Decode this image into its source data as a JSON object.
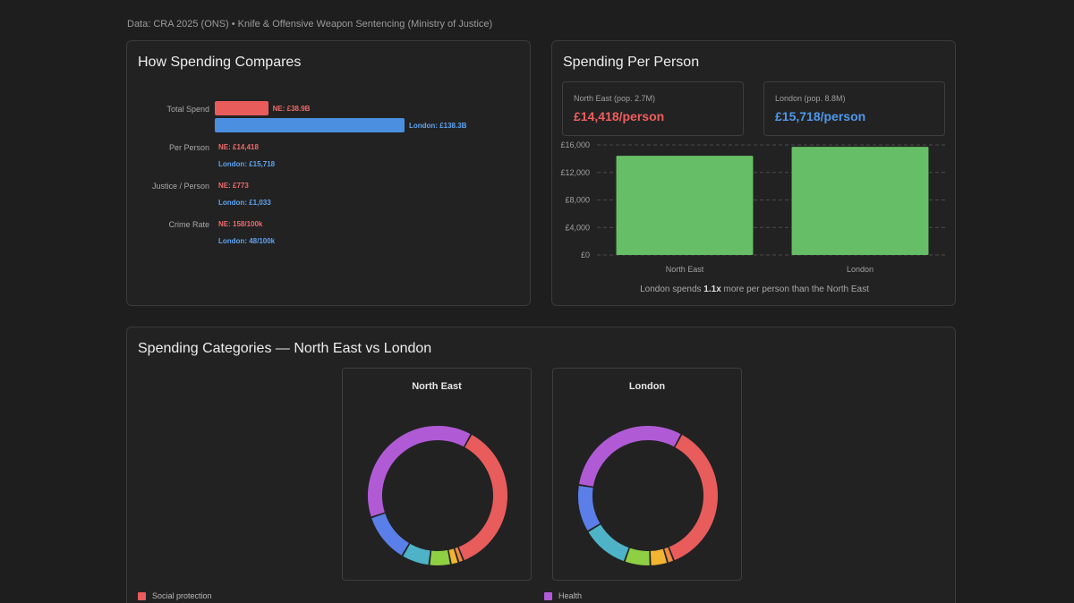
{
  "source_text": "Data: CRA 2025 (ONS) • Knife & Offensive Weapon Sentencing (Ministry of Justice)",
  "compare": {
    "title": "How Spending Compares",
    "rows": [
      {
        "label": "Total Spend",
        "ne_text": "NE: £38.9B",
        "ldn_text": "London: £138.3B",
        "ne_value": 38.9,
        "ldn_value": 138.3,
        "show_bars": true
      },
      {
        "label": "Per Person",
        "ne_text": "NE: £14,418",
        "ldn_text": "London: £15,718",
        "show_bars": false
      },
      {
        "label": "Justice / Person",
        "ne_text": "NE: £773",
        "ldn_text": "London: £1,033",
        "show_bars": false
      },
      {
        "label": "Crime Rate",
        "ne_text": "NE: 158/100k",
        "ldn_text": "London: 48/100k",
        "show_bars": false
      }
    ]
  },
  "per_person": {
    "title": "Spending Per Person",
    "ne_card": {
      "label": "North East (pop. 2.7M)",
      "value": "£14,418/person"
    },
    "ldn_card": {
      "label": "London (pop. 8.8M)",
      "value": "£15,718/person"
    },
    "note_prefix": "London spends ",
    "note_bold": "1.1x",
    "note_suffix": " more per person than the North East"
  },
  "categories": {
    "title": "Spending Categories — North East vs London",
    "ne_title": "North East",
    "ldn_title": "London",
    "legend": [
      {
        "label": "Social protection",
        "color": "#e85c5c"
      },
      {
        "label": "Health",
        "color": "#b15ad6"
      }
    ]
  },
  "chart_data": [
    {
      "type": "bar",
      "categories": [
        "North East",
        "London"
      ],
      "values": [
        14418,
        15718
      ],
      "yticks": [
        "£0",
        "£4,000",
        "£8,000",
        "£12,000",
        "£16,000"
      ],
      "ylim": [
        0,
        16000
      ],
      "color": "#66bf66",
      "grid": true
    },
    {
      "type": "pie",
      "name": "North East",
      "segments": [
        {
          "value": 36,
          "color": "#e85c5c"
        },
        {
          "value": 1.2,
          "color": "#f08a3c"
        },
        {
          "value": 1.8,
          "color": "#f2b531"
        },
        {
          "value": 5,
          "color": "#8fcf43"
        },
        {
          "value": 6.5,
          "color": "#4fb3c8"
        },
        {
          "value": 11.5,
          "color": "#5a7fe8"
        },
        {
          "value": 38,
          "color": "#b15ad6"
        }
      ]
    },
    {
      "type": "pie",
      "name": "London",
      "segments": [
        {
          "value": 36,
          "color": "#e85c5c"
        },
        {
          "value": 1.5,
          "color": "#f08a3c"
        },
        {
          "value": 4,
          "color": "#f2b531"
        },
        {
          "value": 6,
          "color": "#8fcf43"
        },
        {
          "value": 11,
          "color": "#4fb3c8"
        },
        {
          "value": 11,
          "color": "#5a7fe8"
        },
        {
          "value": 30.5,
          "color": "#b15ad6"
        }
      ]
    }
  ]
}
